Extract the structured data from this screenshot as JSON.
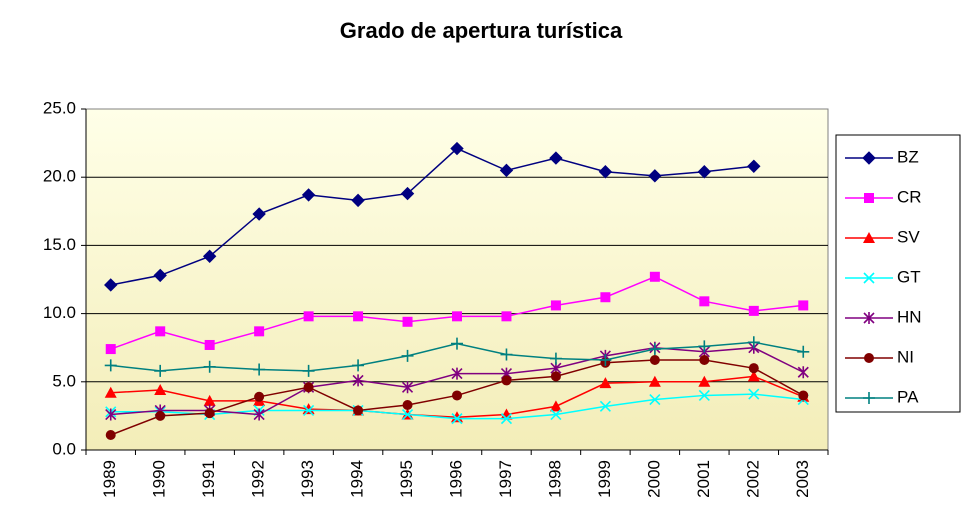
{
  "chart_data": {
    "type": "line",
    "title": "Grado de apertura turística",
    "categories": [
      "1989",
      "1990",
      "1991",
      "1992",
      "1993",
      "1994",
      "1995",
      "1996",
      "1997",
      "1998",
      "1999",
      "2000",
      "2001",
      "2002",
      "2003"
    ],
    "ylim": [
      0,
      25
    ],
    "yticks": [
      {
        "value": 0,
        "label": "0.0"
      },
      {
        "value": 5,
        "label": "5.0"
      },
      {
        "value": 10,
        "label": "10.0"
      },
      {
        "value": 15,
        "label": "15.0"
      },
      {
        "value": 20,
        "label": "20.0"
      },
      {
        "value": 25,
        "label": "25.0"
      }
    ],
    "grid": true,
    "legend": "right",
    "series": [
      {
        "name": "BZ",
        "color": "#000080",
        "marker": "diamond",
        "values": [
          12.1,
          12.8,
          14.2,
          17.3,
          18.7,
          18.3,
          18.8,
          22.1,
          20.5,
          21.4,
          20.4,
          20.1,
          20.4,
          20.8,
          null
        ]
      },
      {
        "name": "CR",
        "color": "#FF00FF",
        "marker": "square",
        "values": [
          7.4,
          8.7,
          7.7,
          8.7,
          9.8,
          9.8,
          9.4,
          9.8,
          9.8,
          10.6,
          11.2,
          12.7,
          10.9,
          10.2,
          10.6
        ]
      },
      {
        "name": "SV",
        "color": "#FF0000",
        "marker": "triangle",
        "values": [
          4.2,
          4.4,
          3.6,
          3.6,
          3.0,
          2.9,
          2.6,
          2.4,
          2.6,
          3.2,
          4.9,
          5.0,
          5.0,
          5.4,
          3.9
        ]
      },
      {
        "name": "GT",
        "color": "#00FFFF",
        "marker": "x",
        "values": [
          2.8,
          2.8,
          2.6,
          2.9,
          2.9,
          2.9,
          2.6,
          2.3,
          2.3,
          2.6,
          3.2,
          3.7,
          4.0,
          4.1,
          3.7
        ]
      },
      {
        "name": "HN",
        "color": "#800080",
        "marker": "asterisk",
        "values": [
          2.6,
          2.9,
          2.9,
          2.6,
          4.6,
          5.1,
          4.6,
          5.6,
          5.6,
          6.0,
          6.9,
          7.5,
          7.2,
          7.5,
          5.7
        ]
      },
      {
        "name": "NI",
        "color": "#800000",
        "marker": "circle",
        "values": [
          1.1,
          2.5,
          2.7,
          3.9,
          4.6,
          2.9,
          3.3,
          4.0,
          5.1,
          5.4,
          6.4,
          6.6,
          6.6,
          6.0,
          4.0
        ]
      },
      {
        "name": "PA",
        "color": "#008080",
        "marker": "plus",
        "values": [
          6.2,
          5.8,
          6.1,
          5.9,
          5.8,
          6.2,
          6.9,
          7.8,
          7.0,
          6.7,
          6.6,
          7.4,
          7.6,
          7.9,
          7.2
        ]
      }
    ]
  }
}
